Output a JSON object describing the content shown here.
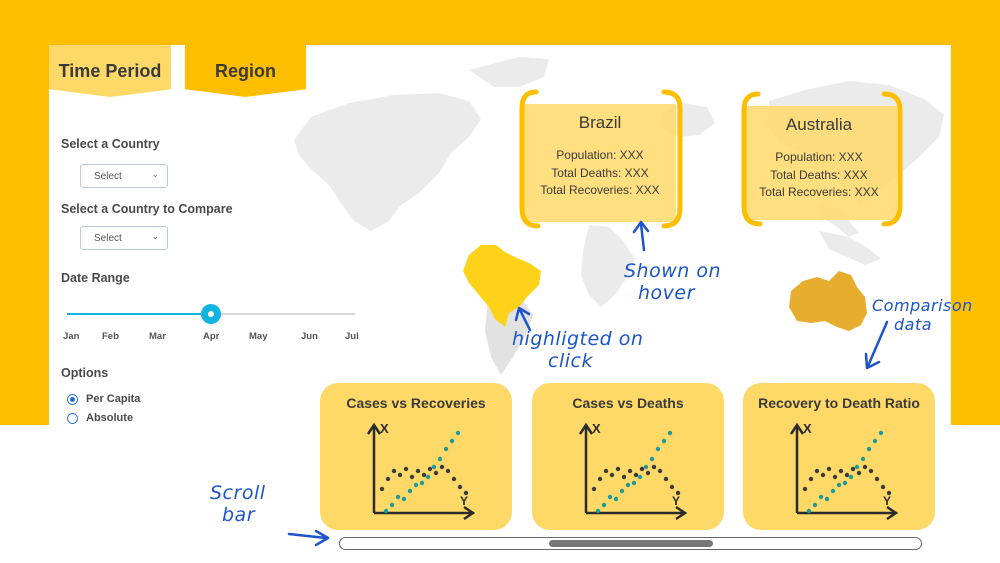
{
  "tabs": [
    {
      "label": "Time Period"
    },
    {
      "label": "Region"
    }
  ],
  "sidebar": {
    "country_label": "Select a Country",
    "country_select": "Select",
    "compare_label": "Select a Country to Compare",
    "compare_select": "Select",
    "date_range_label": "Date Range",
    "months": [
      "Jan",
      "Feb",
      "Mar",
      "Apr",
      "May",
      "Jun",
      "Jul"
    ],
    "slider_selected": "Apr",
    "options_label": "Options",
    "options": [
      {
        "label": "Per Capita",
        "checked": true
      },
      {
        "label": "Absolute",
        "checked": false
      }
    ]
  },
  "cards": [
    {
      "title": "Brazil",
      "population": "Population: XXX",
      "deaths": "Total Deaths: XXX",
      "recoveries": "Total Recoveries: XXX"
    },
    {
      "title": "Australia",
      "population": "Population: XXX",
      "deaths": "Total Deaths: XXX",
      "recoveries": "Total Recoveries: XXX"
    }
  ],
  "charts": [
    {
      "title": "Cases vs Recoveries",
      "x_axis": "Y",
      "y_axis": "X"
    },
    {
      "title": "Cases vs Deaths",
      "x_axis": "Y",
      "y_axis": "X"
    },
    {
      "title": "Recovery to Death Ratio",
      "x_axis": "Y",
      "y_axis": "X"
    }
  ],
  "annotations": {
    "hover": [
      "Shown on",
      "hover"
    ],
    "click": [
      "highligted on",
      "click"
    ],
    "comparison": [
      "Comparison",
      "data"
    ],
    "scroll": [
      "Scroll",
      "bar"
    ]
  },
  "colors": {
    "accent": "#fdbe00",
    "card_fill": "#ffd968",
    "slider": "#12b5e0",
    "annotation": "#1d55c9",
    "highlight": "#ffd21a",
    "australia": "#e6ad2e"
  }
}
